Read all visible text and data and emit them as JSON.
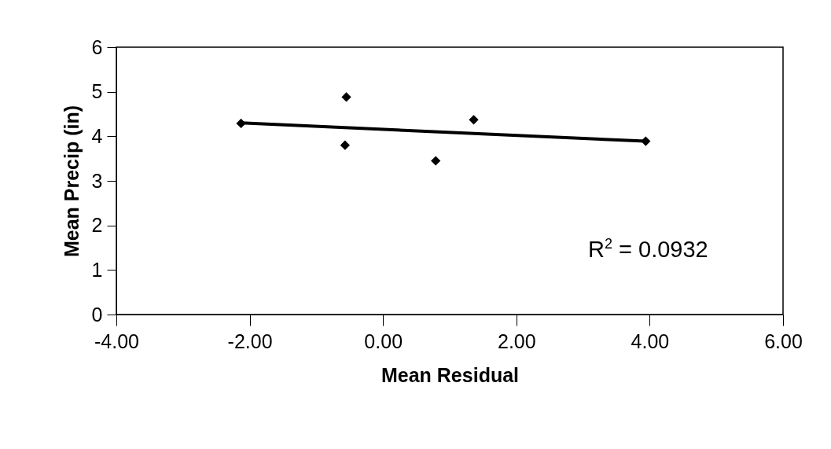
{
  "chart_data": {
    "type": "scatter",
    "xlabel": "Mean Residual",
    "ylabel": "Mean Precip (in)",
    "grid": false,
    "xlim": [
      -4,
      6
    ],
    "ylim": [
      0,
      6
    ],
    "xticks": [
      {
        "value": -4,
        "label": "-4.00"
      },
      {
        "value": -2,
        "label": "-2.00"
      },
      {
        "value": 0,
        "label": "0.00"
      },
      {
        "value": 2,
        "label": "2.00"
      },
      {
        "value": 4,
        "label": "4.00"
      },
      {
        "value": 6,
        "label": "6.00"
      }
    ],
    "yticks": [
      0,
      1,
      2,
      3,
      4,
      5,
      6
    ],
    "annotations": [
      "R$^{2}$ = 0.0932"
    ],
    "series": [
      {
        "marker": "diamond",
        "color": "#000000",
        "x": [
          -2.13,
          -0.55,
          -0.57,
          0.79,
          1.36,
          3.94
        ],
        "values": [
          4.29,
          4.88,
          3.8,
          3.45,
          4.37,
          3.89
        ]
      },
      {
        "type": "line",
        "marker": "none",
        "color": "#000000",
        "x": [
          -2.13,
          3.94
        ],
        "values": [
          4.3,
          3.89
        ]
      }
    ]
  }
}
